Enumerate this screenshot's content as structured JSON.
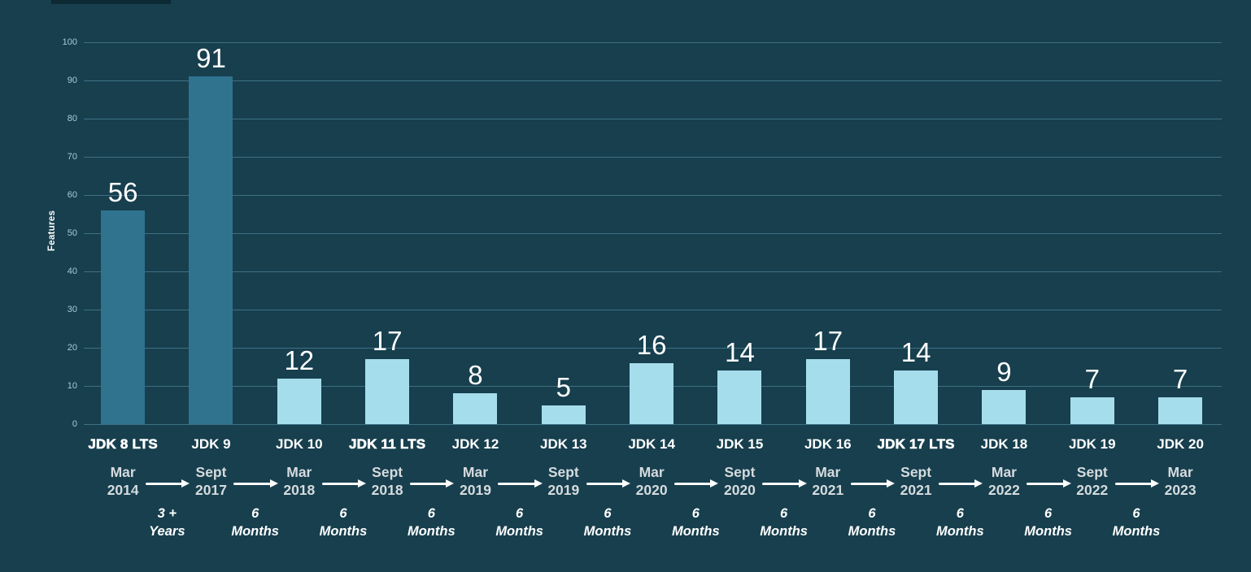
{
  "page": {
    "background": "#173f4e",
    "top_strip_color": "#0d2934"
  },
  "chart_data": {
    "type": "bar",
    "title": "",
    "xlabel": "",
    "ylabel": "Features",
    "ylim": [
      0,
      100
    ],
    "yticks": [
      0,
      10,
      20,
      30,
      40,
      50,
      60,
      70,
      80,
      90,
      100
    ],
    "grid": true,
    "legend": null,
    "categories": [
      "JDK 8 LTS",
      "JDK 9",
      "JDK 10",
      "JDK 11 LTS",
      "JDK 12",
      "JDK 13",
      "JDK 14",
      "JDK 15",
      "JDK 16",
      "JDK 17 LTS",
      "JDK 18",
      "JDK 19",
      "JDK 20"
    ],
    "values": [
      56,
      91,
      12,
      17,
      8,
      5,
      16,
      14,
      17,
      14,
      9,
      7,
      7
    ],
    "bar_styles": [
      "highlight",
      "highlight",
      "normal",
      "normal",
      "normal",
      "normal",
      "normal",
      "normal",
      "normal",
      "normal",
      "normal",
      "normal",
      "normal"
    ],
    "release_dates": [
      {
        "month": "Mar",
        "year": "2014"
      },
      {
        "month": "Sept",
        "year": "2017"
      },
      {
        "month": "Mar",
        "year": "2018"
      },
      {
        "month": "Sept",
        "year": "2018"
      },
      {
        "month": "Mar",
        "year": "2019"
      },
      {
        "month": "Sept",
        "year": "2019"
      },
      {
        "month": "Mar",
        "year": "2020"
      },
      {
        "month": "Sept",
        "year": "2020"
      },
      {
        "month": "Mar",
        "year": "2021"
      },
      {
        "month": "Sept",
        "year": "2021"
      },
      {
        "month": "Mar",
        "year": "2022"
      },
      {
        "month": "Sept",
        "year": "2022"
      },
      {
        "month": "Mar",
        "year": "2023"
      }
    ],
    "intervals": [
      {
        "line1": "3 +",
        "line2": "Years"
      },
      {
        "line1": "6",
        "line2": "Months"
      },
      {
        "line1": "6",
        "line2": "Months"
      },
      {
        "line1": "6",
        "line2": "Months"
      },
      {
        "line1": "6",
        "line2": "Months"
      },
      {
        "line1": "6",
        "line2": "Months"
      },
      {
        "line1": "6",
        "line2": "Months"
      },
      {
        "line1": "6",
        "line2": "Months"
      },
      {
        "line1": "6",
        "line2": "Months"
      },
      {
        "line1": "6",
        "line2": "Months"
      },
      {
        "line1": "6",
        "line2": "Months"
      },
      {
        "line1": "6",
        "line2": "Months"
      }
    ],
    "colors": {
      "background": "#173f4e",
      "grid": "#3f7084",
      "tick_label": "#a6ccd8",
      "bar_highlight": "#30738f",
      "bar_normal": "#a6dded",
      "value_label": "#ffffff",
      "category_label": "#ffffff",
      "date_label": "#d6dbde",
      "interval_label": "#ffffff",
      "arrow": "#ffffff"
    }
  }
}
